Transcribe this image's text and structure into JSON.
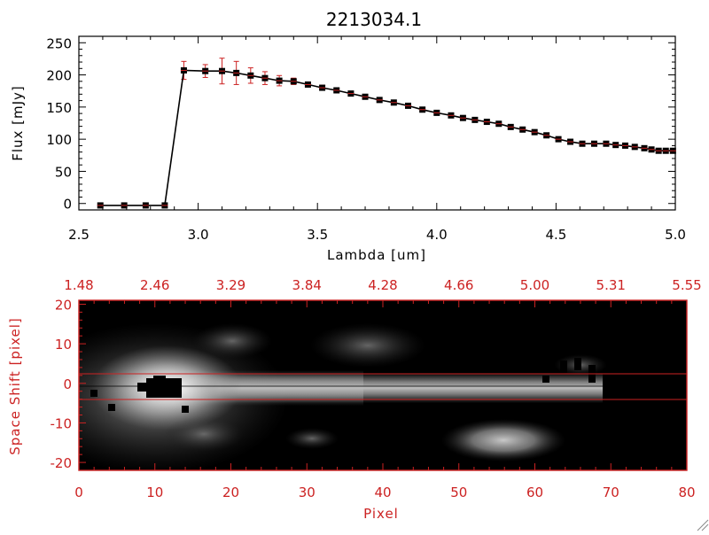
{
  "chart_data": [
    {
      "type": "line",
      "title": "2213034.1",
      "xlabel": "Lambda [um]",
      "ylabel": "Flux [mJy]",
      "xlim": [
        2.5,
        5.0
      ],
      "ylim": [
        -10,
        260
      ],
      "xticks": [
        "2.5",
        "3.0",
        "3.5",
        "4.0",
        "4.5",
        "5.0"
      ],
      "yticks": [
        "0",
        "50",
        "100",
        "150",
        "200",
        "250"
      ],
      "series": [
        {
          "x": [
            2.59,
            2.69,
            2.78,
            2.86,
            2.94,
            3.03,
            3.1,
            3.16,
            3.22,
            3.28,
            3.34,
            3.4,
            3.46,
            3.52,
            3.58,
            3.64,
            3.7,
            3.76,
            3.82,
            3.88,
            3.94,
            4.0,
            4.06,
            4.11,
            4.16,
            4.21,
            4.26,
            4.31,
            4.36,
            4.41,
            4.46,
            4.51,
            4.56,
            4.61,
            4.66,
            4.71,
            4.75,
            4.79,
            4.83,
            4.87,
            4.9,
            4.93,
            4.96,
            4.99
          ],
          "y": [
            -3,
            -3,
            -3,
            -3,
            207,
            206,
            206,
            203,
            199,
            195,
            191,
            190,
            185,
            180,
            176,
            171,
            166,
            161,
            157,
            152,
            146,
            141,
            137,
            133,
            130,
            127,
            124,
            119,
            115,
            111,
            106,
            100,
            96,
            93,
            93,
            93,
            91,
            90,
            88,
            86,
            84,
            82,
            82,
            82
          ],
          "yerr": [
            0,
            0,
            0,
            0,
            14,
            10,
            20,
            18,
            12,
            10,
            8,
            5,
            4,
            4,
            4,
            3,
            3,
            3,
            3,
            3,
            3,
            3,
            3,
            3,
            3,
            3,
            3,
            3,
            3,
            3,
            3,
            3,
            3,
            3,
            3,
            3,
            3,
            3,
            3,
            3,
            3,
            3,
            3,
            3
          ],
          "marker": "square",
          "line_color": "#000000",
          "marker_color": "#000000",
          "error_color": "#cc2222"
        }
      ]
    },
    {
      "type": "heatmap",
      "xlabel": "Pixel",
      "ylabel": "Space Shift [pixel]",
      "xlim": [
        0,
        80
      ],
      "ylim": [
        -22,
        21
      ],
      "xticks": [
        "0",
        "10",
        "20",
        "30",
        "40",
        "50",
        "60",
        "70",
        "80"
      ],
      "yticks": [
        "-20",
        "-10",
        "0",
        "10",
        "20"
      ],
      "top_ticks": [
        "1.48",
        "2.46",
        "3.29",
        "3.84",
        "4.28",
        "4.66",
        "5.00",
        "5.31",
        "5.55"
      ],
      "extraction_aperture": [
        -3,
        3
      ],
      "colormap": "grayscale",
      "axis_color": "#cc2222"
    }
  ]
}
